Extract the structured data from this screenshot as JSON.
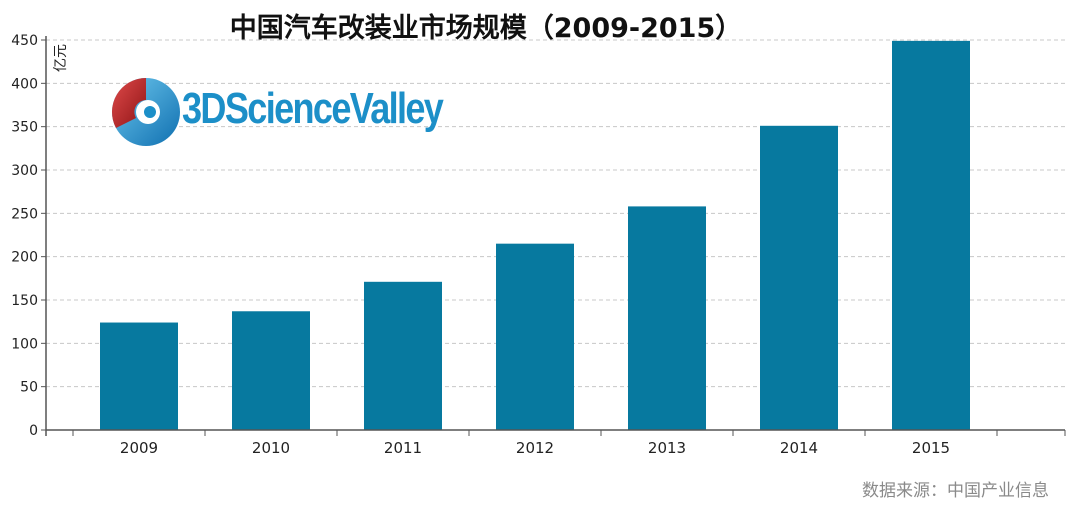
{
  "header": {
    "title": "中国汽车改装业市场规模（2009-2015）"
  },
  "logo": {
    "text": "3DScienceValley",
    "icon": "3dsciencevalley-logo-icon"
  },
  "footer": {
    "source": "数据来源：中国产业信息"
  },
  "colors": {
    "bar": "#07799f",
    "grid": "#c8c8c8",
    "axis": "#555555",
    "logo_blue": "#1c8fc8",
    "logo_red": "#c0282d"
  },
  "chart_data": {
    "type": "bar",
    "title": "中国汽车改装业市场规模（2009-2015）",
    "ylabel": "亿元",
    "xlabel": "",
    "categories": [
      "2009",
      "2010",
      "2011",
      "2012",
      "2013",
      "2014",
      "2015"
    ],
    "values": [
      124,
      137,
      171,
      215,
      258,
      351,
      449
    ],
    "ylim": [
      0,
      450
    ],
    "yticks": [
      "0",
      "50",
      "100",
      "150",
      "200",
      "250",
      "300",
      "350",
      "400",
      "450"
    ],
    "grid": "dashed horizontal",
    "legend": "none"
  }
}
